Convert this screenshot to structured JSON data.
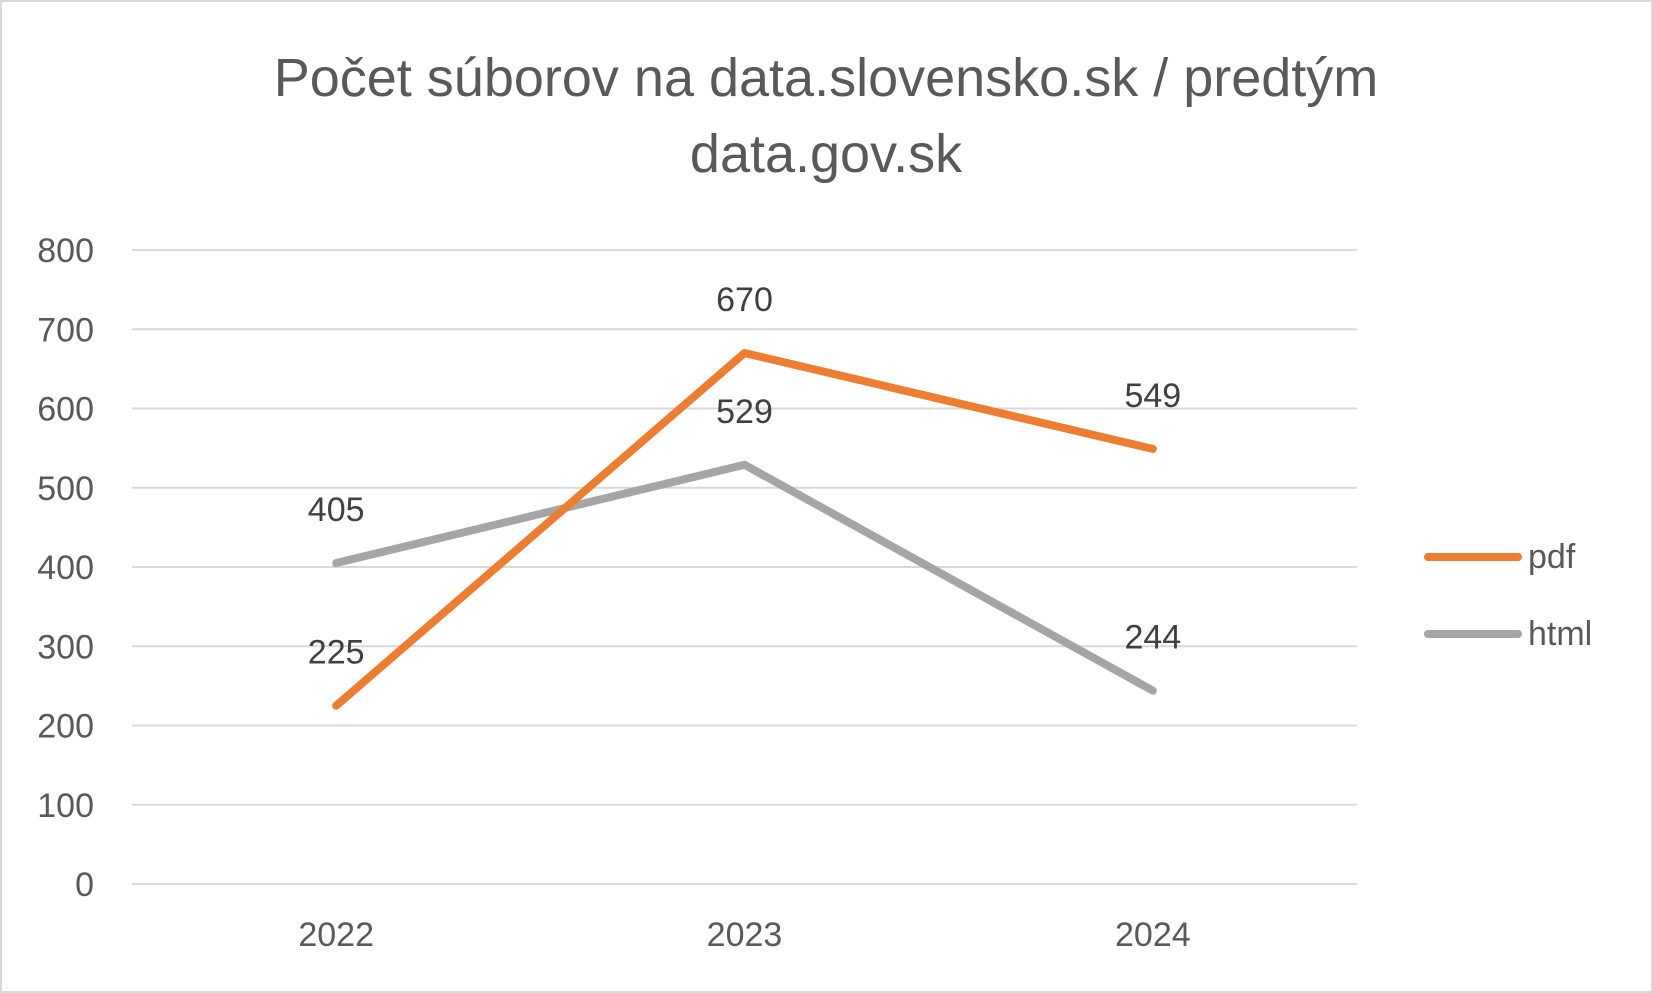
{
  "chart_data": {
    "type": "line",
    "title_lines": [
      "Počet súborov na data.slovensko.sk / predtým",
      "data.gov.sk"
    ],
    "categories": [
      "2022",
      "2023",
      "2024"
    ],
    "series": [
      {
        "name": "pdf",
        "values": [
          225,
          670,
          549
        ],
        "color": "#ed7d31"
      },
      {
        "name": "html",
        "values": [
          405,
          529,
          244
        ],
        "color": "#a5a5a5"
      }
    ],
    "ylim": [
      0,
      800
    ],
    "yticks": [
      "0",
      "100",
      "200",
      "300",
      "400",
      "500",
      "600",
      "700",
      "800"
    ],
    "grid": true,
    "legend_position": "right",
    "data_labels": true
  }
}
